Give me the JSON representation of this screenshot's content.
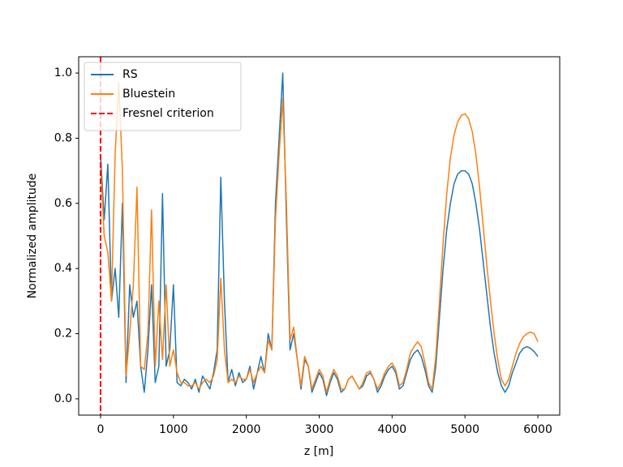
{
  "chart_data": {
    "type": "line",
    "xlabel": "z [m]",
    "ylabel": "Normalized amplitude",
    "x": [
      0,
      50,
      100,
      150,
      200,
      250,
      300,
      350,
      400,
      450,
      500,
      550,
      600,
      650,
      700,
      750,
      800,
      850,
      900,
      950,
      1000,
      1050,
      1100,
      1150,
      1200,
      1250,
      1300,
      1350,
      1400,
      1450,
      1500,
      1550,
      1600,
      1650,
      1700,
      1750,
      1800,
      1850,
      1900,
      1950,
      2000,
      2050,
      2100,
      2150,
      2200,
      2250,
      2300,
      2350,
      2400,
      2450,
      2500,
      2550,
      2600,
      2650,
      2700,
      2750,
      2800,
      2850,
      2900,
      2950,
      3000,
      3050,
      3100,
      3150,
      3200,
      3250,
      3300,
      3350,
      3400,
      3450,
      3500,
      3550,
      3600,
      3650,
      3700,
      3750,
      3800,
      3850,
      3900,
      3950,
      4000,
      4050,
      4100,
      4150,
      4200,
      4250,
      4300,
      4350,
      4400,
      4450,
      4500,
      4550,
      4600,
      4650,
      4700,
      4750,
      4800,
      4850,
      4900,
      4950,
      5000,
      5050,
      5100,
      5150,
      5200,
      5250,
      5300,
      5350,
      5400,
      5450,
      5500,
      5550,
      5600,
      5650,
      5700,
      5750,
      5800,
      5850,
      5900,
      5950,
      6000
    ],
    "series": [
      {
        "name": "RS",
        "color": "#1f77b4",
        "values": [
          0.75,
          0.55,
          0.72,
          0.3,
          0.4,
          0.25,
          0.6,
          0.05,
          0.35,
          0.25,
          0.3,
          0.1,
          0.02,
          0.15,
          0.35,
          0.05,
          0.1,
          0.63,
          0.1,
          0.15,
          0.35,
          0.05,
          0.04,
          0.06,
          0.05,
          0.03,
          0.06,
          0.02,
          0.07,
          0.05,
          0.03,
          0.08,
          0.15,
          0.68,
          0.3,
          0.05,
          0.09,
          0.04,
          0.08,
          0.05,
          0.06,
          0.1,
          0.03,
          0.08,
          0.13,
          0.08,
          0.2,
          0.15,
          0.6,
          0.8,
          1.0,
          0.55,
          0.15,
          0.2,
          0.12,
          0.03,
          0.12,
          0.1,
          0.02,
          0.05,
          0.08,
          0.06,
          0.01,
          0.05,
          0.08,
          0.06,
          0.02,
          0.03,
          0.06,
          0.07,
          0.05,
          0.03,
          0.04,
          0.07,
          0.08,
          0.06,
          0.02,
          0.04,
          0.07,
          0.09,
          0.1,
          0.08,
          0.03,
          0.04,
          0.08,
          0.12,
          0.14,
          0.15,
          0.13,
          0.09,
          0.04,
          0.02,
          0.1,
          0.25,
          0.4,
          0.52,
          0.6,
          0.66,
          0.69,
          0.7,
          0.7,
          0.69,
          0.66,
          0.6,
          0.52,
          0.42,
          0.32,
          0.22,
          0.14,
          0.08,
          0.04,
          0.02,
          0.04,
          0.08,
          0.11,
          0.14,
          0.155,
          0.16,
          0.155,
          0.145,
          0.13
        ]
      },
      {
        "name": "Bluestein",
        "color": "#ff7f0e",
        "values": [
          0.72,
          0.5,
          0.45,
          0.3,
          0.75,
          0.97,
          0.7,
          0.07,
          0.2,
          0.35,
          0.65,
          0.1,
          0.09,
          0.2,
          0.58,
          0.1,
          0.3,
          0.12,
          0.35,
          0.1,
          0.15,
          0.08,
          0.05,
          0.05,
          0.04,
          0.04,
          0.05,
          0.03,
          0.05,
          0.06,
          0.05,
          0.07,
          0.12,
          0.37,
          0.15,
          0.05,
          0.06,
          0.05,
          0.07,
          0.06,
          0.06,
          0.09,
          0.05,
          0.08,
          0.1,
          0.08,
          0.18,
          0.15,
          0.55,
          0.75,
          0.92,
          0.6,
          0.18,
          0.22,
          0.12,
          0.04,
          0.13,
          0.1,
          0.03,
          0.06,
          0.09,
          0.07,
          0.02,
          0.06,
          0.09,
          0.07,
          0.03,
          0.03,
          0.06,
          0.07,
          0.05,
          0.03,
          0.05,
          0.08,
          0.085,
          0.06,
          0.03,
          0.05,
          0.08,
          0.1,
          0.11,
          0.09,
          0.04,
          0.05,
          0.09,
          0.14,
          0.16,
          0.175,
          0.16,
          0.11,
          0.05,
          0.03,
          0.13,
          0.3,
          0.48,
          0.63,
          0.74,
          0.81,
          0.85,
          0.87,
          0.875,
          0.86,
          0.82,
          0.75,
          0.65,
          0.53,
          0.41,
          0.3,
          0.2,
          0.12,
          0.06,
          0.04,
          0.06,
          0.1,
          0.14,
          0.17,
          0.19,
          0.2,
          0.205,
          0.2,
          0.175
        ]
      }
    ],
    "reference_line": {
      "name": "Fresnel criterion",
      "x": 0,
      "color": "#ff0000",
      "style": "dashed"
    },
    "xlim": [
      -300,
      6300
    ],
    "xticks": [
      0,
      1000,
      2000,
      3000,
      4000,
      5000,
      6000
    ],
    "ylim": [
      -0.05,
      1.05
    ],
    "yticks": [
      {
        "value": 0,
        "label": "0.0"
      },
      0.2,
      0.4,
      0.6,
      0.8,
      {
        "value": 1,
        "label": "1.0"
      }
    ],
    "legend": "upper left",
    "grid": false
  }
}
